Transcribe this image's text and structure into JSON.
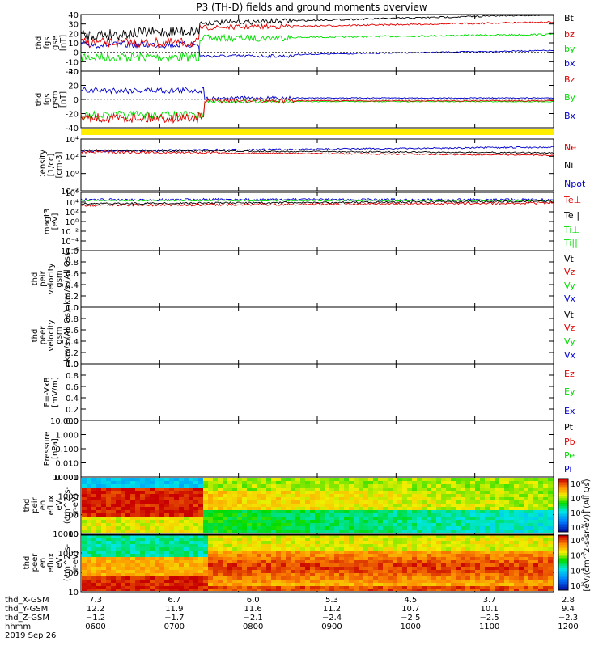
{
  "title": "P3 (TH-D) fields and ground moments overview",
  "colors": {
    "black": "#000000",
    "red": "#e00000",
    "green": "#00dd00",
    "blue": "#0000cc",
    "yellow": "#ffee00"
  },
  "time_axis": {
    "hhmm": [
      "0600",
      "0700",
      "0800",
      "0900",
      "1000",
      "1100",
      "1200"
    ],
    "x_gsm": [
      "7.3",
      "6.7",
      "6.0",
      "5.3",
      "4.5",
      "3.7",
      "2.8"
    ],
    "y_gsm": [
      "12.2",
      "11.9",
      "11.6",
      "11.2",
      "10.7",
      "10.1",
      "9.4"
    ],
    "z_gsm": [
      "−1.2",
      "−1.7",
      "−2.1",
      "−2.4",
      "−2.5",
      "−2.5",
      "−2.3"
    ],
    "row_labels": [
      "thd_X-GSM",
      "thd_Y-GSM",
      "thd_Z-GSM",
      "hhmm"
    ],
    "date": "2019 Sep 26"
  },
  "chart_data": [
    {
      "id": "fgs-gse",
      "type": "line",
      "ylabel": [
        "thd",
        "fgs",
        "gse",
        "[nT]"
      ],
      "yticks": [
        "40",
        "30",
        "20",
        "10",
        "0",
        "-10",
        "-20"
      ],
      "legend": [
        {
          "label": "Bt",
          "color": "#000000"
        },
        {
          "label": "bz",
          "color": "#e00000"
        },
        {
          "label": "by",
          "color": "#00dd00"
        },
        {
          "label": "bx",
          "color": "#0000cc"
        }
      ]
    },
    {
      "id": "fgs-gsm",
      "type": "line",
      "ylabel": [
        "thd",
        "fgs",
        "gsm",
        "[nT]"
      ],
      "yticks": [
        "40",
        "20",
        "0",
        "-20",
        "-40"
      ],
      "legend": [
        {
          "label": "Bz",
          "color": "#e00000"
        },
        {
          "label": "By",
          "color": "#00dd00"
        },
        {
          "label": "Bx",
          "color": "#0000cc"
        }
      ]
    },
    {
      "id": "density",
      "type": "line",
      "ylabel": [
        "Density",
        "[1/cc]",
        "[cm-3]"
      ],
      "yticks": [
        "10⁴",
        "10²",
        "10⁰",
        "10⁻²"
      ],
      "legend": [
        {
          "label": "Ne",
          "color": "#e00000"
        },
        {
          "label": "Ni",
          "color": "#000000"
        },
        {
          "label": "Npot",
          "color": "#0000cc"
        }
      ]
    },
    {
      "id": "temperature",
      "type": "line",
      "ylabel": [
        "magt3",
        "[eV]"
      ],
      "yticks": [
        "10⁶",
        "10⁴",
        "10²",
        "10⁰",
        "10⁻²",
        "10⁻⁴",
        "10⁻⁶"
      ],
      "legend": [
        {
          "label": "Te⊥",
          "color": "#e00000"
        },
        {
          "label": "Te||",
          "color": "#000000"
        },
        {
          "label": "Ti⊥",
          "color": "#00dd00"
        },
        {
          "label": "Ti||",
          "color": "#00dd00"
        }
      ]
    },
    {
      "id": "ion-velocity",
      "type": "line",
      "ylabel": [
        "thd",
        "peir",
        "velocity",
        "gsm",
        "km/s (All Qs)"
      ],
      "yticks": [
        "1.0",
        "0.8",
        "0.6",
        "0.4",
        "0.2",
        "0.0"
      ],
      "legend": [
        {
          "label": "Vt",
          "color": "#000000"
        },
        {
          "label": "Vz",
          "color": "#e00000"
        },
        {
          "label": "Vy",
          "color": "#00dd00"
        },
        {
          "label": "Vx",
          "color": "#0000cc"
        }
      ]
    },
    {
      "id": "electron-velocity",
      "type": "line",
      "ylabel": [
        "thd",
        "peer",
        "velocity",
        "gsm",
        "km/s (All Qs)"
      ],
      "yticks": [
        "1.0",
        "0.8",
        "0.6",
        "0.4",
        "0.2",
        "0.0"
      ],
      "legend": [
        {
          "label": "Vt",
          "color": "#000000"
        },
        {
          "label": "Vz",
          "color": "#e00000"
        },
        {
          "label": "Vy",
          "color": "#00dd00"
        },
        {
          "label": "Vx",
          "color": "#0000cc"
        }
      ]
    },
    {
      "id": "efield",
      "type": "line",
      "ylabel": [
        "E=-VxB",
        "[mV/m]"
      ],
      "yticks": [
        "1.0",
        "0.8",
        "0.6",
        "0.4",
        "0.2",
        "0.0"
      ],
      "legend": [
        {
          "label": "Ez",
          "color": "#e00000"
        },
        {
          "label": "Ey",
          "color": "#00dd00"
        },
        {
          "label": "Ex",
          "color": "#0000cc"
        }
      ]
    },
    {
      "id": "pressure",
      "type": "line",
      "ylabel": [
        "Pressure",
        "[nPa]"
      ],
      "yticks": [
        "10.000",
        "1.000",
        "0.100",
        "0.010",
        "0.001"
      ],
      "legend": [
        {
          "label": "Pt",
          "color": "#000000"
        },
        {
          "label": "Pb",
          "color": "#e00000"
        },
        {
          "label": "Pe",
          "color": "#00dd00"
        },
        {
          "label": "Pi",
          "color": "#0000cc"
        }
      ]
    },
    {
      "id": "ion-spectrogram",
      "type": "heatmap",
      "ylabel": [
        "thd",
        "peir",
        "en",
        "eflux",
        "eV",
        "(cm^2-s-",
        "sr-eV)"
      ],
      "yticks": [
        "10000",
        "1000",
        "100",
        "10"
      ]
    },
    {
      "id": "electron-spectrogram",
      "type": "heatmap",
      "ylabel": [
        "thd",
        "peer",
        "en",
        "eflux",
        "eV",
        "(cm^2-s-",
        "sr-eV)"
      ],
      "yticks": [
        "10000",
        "1000",
        "100",
        "10"
      ]
    }
  ],
  "colorbar": {
    "ticks_top": [
      "10⁸",
      "10⁶",
      "10⁴",
      "10²"
    ],
    "ticks_bottom": [
      "10⁸",
      "10⁶",
      "10⁴",
      "10²"
    ],
    "label": "[eV/(cm^2-s-sr-eV)] (All Qs)"
  }
}
